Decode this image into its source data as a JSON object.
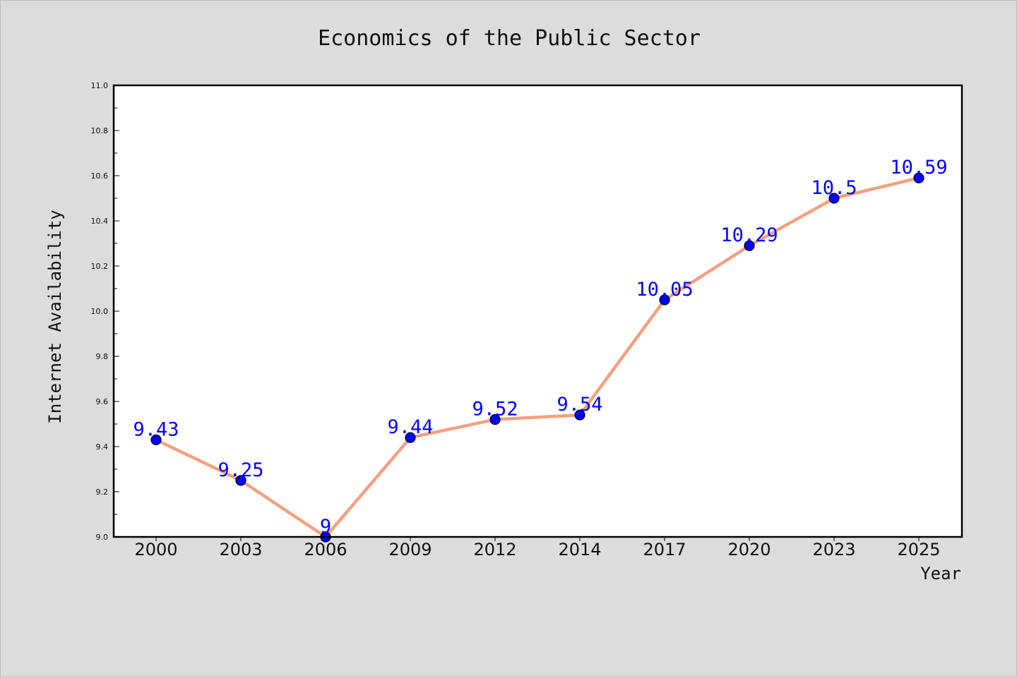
{
  "chart_data": {
    "type": "line",
    "title": "Economics of the Public Sector",
    "xlabel": "Year",
    "ylabel": "Internet Availability",
    "categories": [
      "2000",
      "2003",
      "2006",
      "2009",
      "2012",
      "2014",
      "2017",
      "2020",
      "2023",
      "2025"
    ],
    "values": [
      9.43,
      9.25,
      9.0,
      9.44,
      9.52,
      9.54,
      10.05,
      10.29,
      10.5,
      10.59
    ],
    "data_labels": [
      "9.43",
      "9.25",
      "9",
      "9.44",
      "9.52",
      "9.54",
      "10.05",
      "10.29",
      "10.5",
      "10.59"
    ],
    "ylim": [
      9.0,
      11.0
    ],
    "yticks": [
      "9.0",
      "9.2",
      "9.4",
      "9.6",
      "9.8",
      "10.0",
      "10.2",
      "10.4",
      "10.6",
      "10.8",
      "11.0"
    ],
    "grid": false,
    "legend": "none",
    "colors": {
      "line": "#f4a07e",
      "marker": "#0000ff",
      "marker_edge": "#000000",
      "data_label": "#0000ff",
      "plot_background": "#ffffff",
      "figure_background": "#dcdcdc"
    }
  }
}
